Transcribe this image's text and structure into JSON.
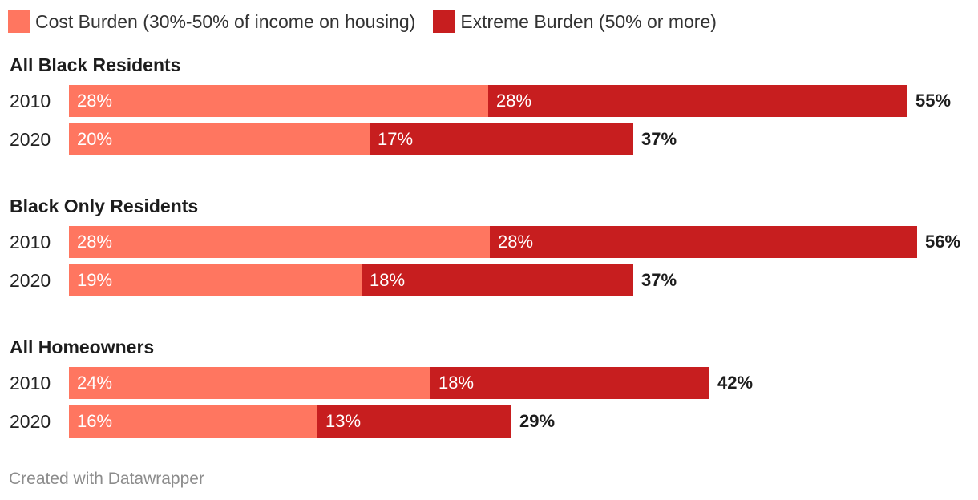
{
  "legend": [
    {
      "label": "Cost Burden (30%-50% of income on housing)",
      "color": "#ff7660"
    },
    {
      "label": "Extreme Burden (50% or more)",
      "color": "#c71e1f"
    }
  ],
  "footer": "Created with Datawrapper",
  "chart_data": {
    "type": "bar",
    "orientation": "horizontal",
    "stacked": true,
    "series": [
      {
        "name": "Cost Burden (30%-50% of income on housing)",
        "color": "#ff7660"
      },
      {
        "name": "Extreme Burden (50% or more)",
        "color": "#c71e1f"
      }
    ],
    "groups": [
      {
        "title": "All Black Residents",
        "rows": [
          {
            "label": "2010",
            "values": [
              27.5,
              27.5
            ],
            "labels": [
              "28%",
              "28%"
            ],
            "total": "55%"
          },
          {
            "label": "2020",
            "values": [
              19.7,
              17.3
            ],
            "labels": [
              "20%",
              "17%"
            ],
            "total": "37%"
          }
        ]
      },
      {
        "title": "Black Only Residents",
        "rows": [
          {
            "label": "2010",
            "values": [
              27.6,
              28.0
            ],
            "labels": [
              "28%",
              "28%"
            ],
            "total": "56%"
          },
          {
            "label": "2020",
            "values": [
              19.2,
              17.8
            ],
            "labels": [
              "19%",
              "18%"
            ],
            "total": "37%"
          }
        ]
      },
      {
        "title": "All Homeowners",
        "rows": [
          {
            "label": "2010",
            "values": [
              23.7,
              18.3
            ],
            "labels": [
              "24%",
              "18%"
            ],
            "total": "42%"
          },
          {
            "label": "2020",
            "values": [
              16.3,
              12.7
            ],
            "labels": [
              "16%",
              "13%"
            ],
            "total": "29%"
          }
        ]
      }
    ],
    "xlim": [
      0,
      56
    ]
  }
}
